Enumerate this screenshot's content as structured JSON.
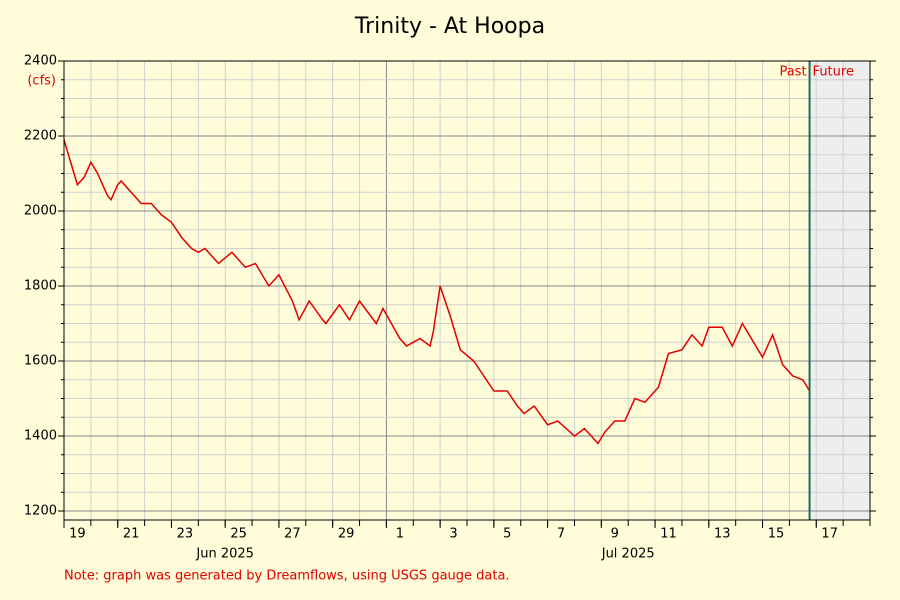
{
  "chart_data": {
    "type": "line",
    "title": "Trinity - At Hoopa",
    "y_unit": "(cfs)",
    "note": "Note: graph was generated by Dreamflows, using USGS gauge data.",
    "color": "#e00000",
    "x": [
      "2025-06-19T00:00",
      "2025-06-19T12:00",
      "2025-06-19T18:00",
      "2025-06-20T00:00",
      "2025-06-20T06:00",
      "2025-06-20T15:00",
      "2025-06-20T18:00",
      "2025-06-21T00:00",
      "2025-06-21T03:00",
      "2025-06-21T12:00",
      "2025-06-21T21:00",
      "2025-06-22T06:00",
      "2025-06-22T15:00",
      "2025-06-23T00:00",
      "2025-06-23T09:00",
      "2025-06-23T18:00",
      "2025-06-24T00:00",
      "2025-06-24T06:00",
      "2025-06-24T18:00",
      "2025-06-25T06:00",
      "2025-06-25T18:00",
      "2025-06-26T03:00",
      "2025-06-26T15:00",
      "2025-06-27T00:00",
      "2025-06-27T12:00",
      "2025-06-27T18:00",
      "2025-06-28T03:00",
      "2025-06-28T15:00",
      "2025-06-28T18:00",
      "2025-06-29T06:00",
      "2025-06-29T15:00",
      "2025-06-30T00:00",
      "2025-06-30T15:00",
      "2025-06-30T21:00",
      "2025-07-01T12:00",
      "2025-07-01T18:00",
      "2025-07-02T06:00",
      "2025-07-02T15:00",
      "2025-07-02T18:00",
      "2025-07-03T00:00",
      "2025-07-03T09:00",
      "2025-07-03T18:00",
      "2025-07-04T06:00",
      "2025-07-04T15:00",
      "2025-07-05T00:00",
      "2025-07-05T12:00",
      "2025-07-05T21:00",
      "2025-07-06T03:00",
      "2025-07-06T12:00",
      "2025-07-07T00:00",
      "2025-07-07T09:00",
      "2025-07-08T00:00",
      "2025-07-08T09:00",
      "2025-07-08T21:00",
      "2025-07-09T03:00",
      "2025-07-09T12:00",
      "2025-07-09T21:00",
      "2025-07-10T06:00",
      "2025-07-10T15:00",
      "2025-07-11T03:00",
      "2025-07-11T12:00",
      "2025-07-12T00:00",
      "2025-07-12T09:00",
      "2025-07-12T18:00",
      "2025-07-13T00:00",
      "2025-07-13T12:00",
      "2025-07-13T21:00",
      "2025-07-14T06:00",
      "2025-07-15T00:00",
      "2025-07-15T09:00",
      "2025-07-15T18:00",
      "2025-07-16T03:00",
      "2025-07-16T12:00",
      "2025-07-16T18:00"
    ],
    "values": [
      2190,
      2070,
      2090,
      2130,
      2100,
      2040,
      2030,
      2070,
      2080,
      2050,
      2020,
      2020,
      1990,
      1970,
      1930,
      1900,
      1890,
      1900,
      1860,
      1890,
      1850,
      1860,
      1800,
      1830,
      1760,
      1710,
      1760,
      1710,
      1700,
      1750,
      1710,
      1760,
      1700,
      1740,
      1660,
      1640,
      1660,
      1640,
      1680,
      1800,
      1720,
      1630,
      1600,
      1560,
      1520,
      1520,
      1480,
      1460,
      1480,
      1430,
      1440,
      1400,
      1420,
      1380,
      1410,
      1440,
      1440,
      1500,
      1490,
      1530,
      1620,
      1630,
      1670,
      1640,
      1690,
      1690,
      1640,
      1700,
      1610,
      1670,
      1590,
      1560,
      1550,
      1520
    ],
    "xlim": [
      "2025-06-19T00:00",
      "2025-07-19T00:00"
    ],
    "xticks": [
      {
        "value": "2025-06-19",
        "label": "19"
      },
      {
        "value": "2025-06-21",
        "label": "21"
      },
      {
        "value": "2025-06-23",
        "label": "23"
      },
      {
        "value": "2025-06-25",
        "label": "25"
      },
      {
        "value": "2025-06-27",
        "label": "27"
      },
      {
        "value": "2025-06-29",
        "label": "29"
      },
      {
        "value": "2025-07-01",
        "label": "1"
      },
      {
        "value": "2025-07-03",
        "label": "3"
      },
      {
        "value": "2025-07-05",
        "label": "5"
      },
      {
        "value": "2025-07-07",
        "label": "7"
      },
      {
        "value": "2025-07-09",
        "label": "9"
      },
      {
        "value": "2025-07-11",
        "label": "11"
      },
      {
        "value": "2025-07-13",
        "label": "13"
      },
      {
        "value": "2025-07-15",
        "label": "15"
      },
      {
        "value": "2025-07-17",
        "label": "17"
      }
    ],
    "month_labels": [
      {
        "value": "2025-06-25",
        "label": "Jun 2025"
      },
      {
        "value": "2025-07-10",
        "label": "Jul 2025"
      }
    ],
    "ylim": [
      1176,
      2400
    ],
    "yticks": [
      1200,
      1400,
      1600,
      1800,
      2000,
      2200,
      2400
    ],
    "now": {
      "value": "2025-07-16T18:00",
      "before": "Past",
      "after": "Future"
    },
    "grid": true
  }
}
